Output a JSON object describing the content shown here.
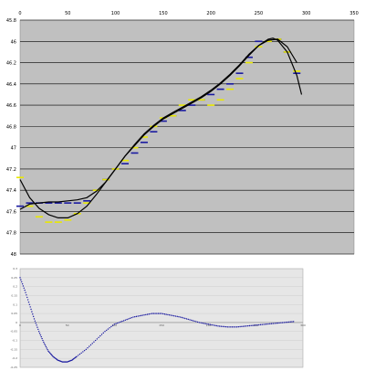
{
  "chart_data": [
    {
      "type": "line",
      "title": "",
      "xlabel": "",
      "ylabel": "",
      "xlim": [
        0,
        350
      ],
      "ylim": [
        48,
        45.8
      ],
      "y_inverted": true,
      "grid": true,
      "legend": "none",
      "x_ticks": [
        0,
        50,
        100,
        150,
        200,
        250,
        300,
        350
      ],
      "x_tick_labels": [
        "0",
        "50",
        "100",
        "150",
        "200",
        "250",
        "300",
        "350"
      ],
      "y_ticks": [
        45.8,
        46,
        46.2,
        46.4,
        46.6,
        46.8,
        47,
        47.2,
        47.4,
        47.6,
        47.8,
        48
      ],
      "y_tick_labels": [
        "45.8",
        "46",
        "46.2",
        "46.4",
        "46.6",
        "46.8",
        "47",
        "47.2",
        "47.4",
        "47.6",
        "47.8",
        "48"
      ],
      "colors": {
        "plot_bg": "#c0c0c0",
        "observed": "#1a1aa0",
        "smoothed": "#e8e800",
        "fit_curve": "#000000"
      },
      "series": [
        {
          "role": "observed",
          "x": [
            0,
            10,
            20,
            30,
            40,
            50,
            60,
            70,
            80,
            90,
            100,
            110,
            120,
            130,
            140,
            150,
            160,
            170,
            180,
            190,
            200,
            210,
            220,
            230,
            240,
            250,
            260,
            270,
            280,
            290
          ],
          "y": [
            47.55,
            47.52,
            47.52,
            47.52,
            47.52,
            47.52,
            47.52,
            47.5,
            47.4,
            47.3,
            47.2,
            47.15,
            47.05,
            46.95,
            46.85,
            46.75,
            46.7,
            46.65,
            46.6,
            46.55,
            46.5,
            46.45,
            46.4,
            46.3,
            46.15,
            46.0,
            46.0,
            45.98,
            46.1,
            46.3
          ]
        },
        {
          "role": "smoothed",
          "x": [
            0,
            10,
            20,
            30,
            40,
            50,
            60,
            70,
            80,
            90,
            100,
            110,
            120,
            130,
            140,
            150,
            160,
            170,
            180,
            190,
            200,
            210,
            220,
            230,
            240,
            250,
            260,
            270,
            280,
            290
          ],
          "y": [
            47.28,
            47.55,
            47.65,
            47.7,
            47.7,
            47.68,
            47.62,
            47.52,
            47.4,
            47.3,
            47.2,
            47.12,
            47.0,
            46.9,
            46.8,
            46.72,
            46.7,
            46.6,
            46.55,
            46.55,
            46.6,
            46.55,
            46.45,
            46.35,
            46.2,
            46.05,
            46.0,
            45.98,
            46.1,
            46.28
          ]
        },
        {
          "role": "fit_curve",
          "x": [
            0,
            10,
            20,
            30,
            40,
            50,
            60,
            70,
            80,
            90,
            100,
            110,
            120,
            130,
            140,
            150,
            160,
            170,
            180,
            190,
            200,
            210,
            220,
            230,
            240,
            250,
            260,
            265,
            270,
            280,
            290,
            295
          ],
          "y": [
            47.3,
            47.47,
            47.57,
            47.63,
            47.66,
            47.66,
            47.62,
            47.55,
            47.44,
            47.32,
            47.2,
            47.08,
            46.98,
            46.88,
            46.8,
            46.73,
            46.68,
            46.63,
            46.58,
            46.53,
            46.47,
            46.4,
            46.32,
            46.23,
            46.13,
            46.04,
            45.98,
            45.97,
            45.99,
            46.1,
            46.32,
            46.5
          ]
        },
        {
          "role": "fit_curve",
          "x": [
            0,
            10,
            20,
            30,
            40,
            50,
            60,
            70,
            80,
            90,
            100,
            110,
            120,
            130,
            140,
            150,
            160,
            170,
            180,
            190,
            200,
            210,
            220,
            230,
            240,
            250,
            260,
            270,
            280,
            290
          ],
          "y": [
            47.58,
            47.53,
            47.52,
            47.51,
            47.51,
            47.5,
            47.49,
            47.47,
            47.41,
            47.32,
            47.2,
            47.08,
            46.97,
            46.87,
            46.79,
            46.72,
            46.67,
            46.62,
            46.57,
            46.52,
            46.46,
            46.39,
            46.31,
            46.22,
            46.12,
            46.04,
            45.99,
            45.98,
            46.05,
            46.2
          ]
        }
      ]
    },
    {
      "type": "scatter",
      "title": "",
      "xlabel": "",
      "ylabel": "",
      "xlim": [
        0,
        300
      ],
      "ylim": [
        -0.25,
        0.3
      ],
      "grid": true,
      "legend": "none",
      "x_ticks": [
        0,
        50,
        100,
        150,
        200,
        250,
        300
      ],
      "x_tick_labels": [
        "0",
        "50",
        "100",
        "150",
        "200",
        "250",
        "300"
      ],
      "y_ticks": [
        0.3,
        0.25,
        0.2,
        0.15,
        0.1,
        0.05,
        0,
        -0.05,
        -0.1,
        -0.15,
        -0.2,
        -0.25
      ],
      "y_tick_labels": [
        "0.3",
        "0.25",
        "0.2",
        "0.15",
        "0.1",
        "0.05",
        "0",
        "-0.05",
        "-0.1",
        "-0.15",
        "-0.2",
        "-0.25"
      ],
      "colors": {
        "plot_bg": "#e6e6e6",
        "points": "#1a1aa0"
      },
      "series": [
        {
          "x": [
            0,
            5,
            10,
            15,
            20,
            25,
            30,
            35,
            40,
            45,
            50,
            55,
            60,
            70,
            80,
            90,
            100,
            110,
            120,
            130,
            140,
            150,
            160,
            170,
            180,
            190,
            200,
            210,
            220,
            230,
            240,
            250,
            260,
            270,
            280,
            290
          ],
          "y": [
            0.25,
            0.18,
            0.1,
            0.02,
            -0.05,
            -0.11,
            -0.16,
            -0.19,
            -0.21,
            -0.22,
            -0.22,
            -0.21,
            -0.19,
            -0.15,
            -0.1,
            -0.05,
            -0.01,
            0.01,
            0.03,
            0.04,
            0.05,
            0.05,
            0.04,
            0.03,
            0.015,
            0.0,
            -0.01,
            -0.02,
            -0.025,
            -0.025,
            -0.02,
            -0.015,
            -0.01,
            -0.005,
            0.0,
            0.005
          ]
        }
      ]
    }
  ]
}
